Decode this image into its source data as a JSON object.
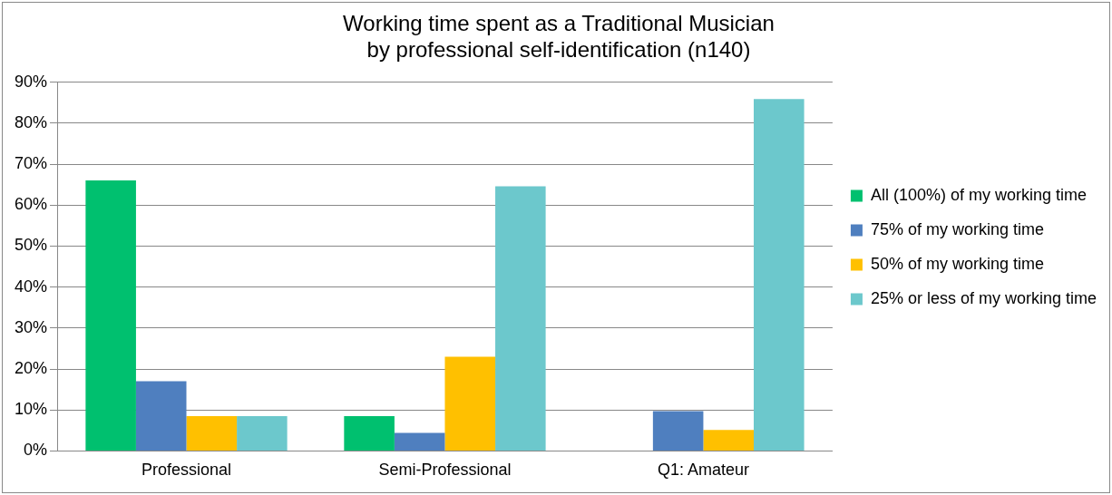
{
  "chart_data": {
    "type": "bar",
    "title": "Working time spent as a Traditional Musician\nby professional self-identification (n140)",
    "categories": [
      "Professional",
      "Semi-Professional",
      "Q1: Amateur"
    ],
    "series": [
      {
        "name": "All (100%) of my working time",
        "color": "#00c06f",
        "values": [
          66,
          8.5,
          0
        ]
      },
      {
        "name": "75% of my working time",
        "color": "#4f7fbf",
        "values": [
          17,
          4.4,
          9.7
        ]
      },
      {
        "name": "50% of my working time",
        "color": "#ffc000",
        "values": [
          8.5,
          23,
          5.1
        ]
      },
      {
        "name": "25% or less of my working time",
        "color": "#6cc8cc",
        "values": [
          8.5,
          64.6,
          85.9
        ]
      }
    ],
    "ylim": [
      0,
      90
    ],
    "yticks": [
      {
        "value": 0,
        "label": "0%"
      },
      {
        "value": 10,
        "label": "10%"
      },
      {
        "value": 20,
        "label": "20%"
      },
      {
        "value": 30,
        "label": "30%"
      },
      {
        "value": 40,
        "label": "40%"
      },
      {
        "value": 50,
        "label": "50%"
      },
      {
        "value": 60,
        "label": "60%"
      },
      {
        "value": 70,
        "label": "70%"
      },
      {
        "value": 80,
        "label": "80%"
      },
      {
        "value": 90,
        "label": "90%"
      }
    ],
    "grid": "y",
    "legend": "right"
  }
}
